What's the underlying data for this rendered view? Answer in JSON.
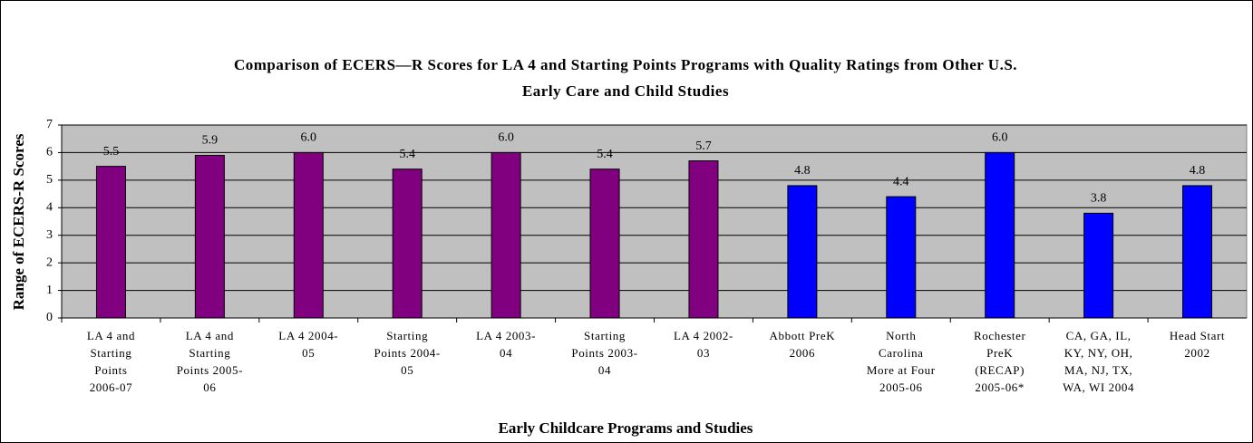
{
  "chart_data": {
    "type": "bar",
    "title": "Comparison of ECERS—R Scores for LA 4 and Starting Points Programs with Quality Ratings from Other U.S. Early Care and Child Studies",
    "x_label": "Early Childcare Programs and Studies",
    "y_label": "Range of ECERS-R Scores",
    "categories": [
      "LA 4 and\nStarting\nPoints\n2006-07",
      "LA 4 and\nStarting\nPoints 2005-\n06",
      "LA 4   2004-\n05",
      "Starting\nPoints 2004-\n05",
      "LA 4   2003-\n04",
      "Starting\nPoints 2003-\n04",
      "LA 4   2002-\n03",
      "Abbott PreK\n2006",
      "North\nCarolina\nMore at Four\n2005-06",
      "Rochester\nPreK\n(RECAP)\n2005-06*",
      "CA, GA, IL,\nKY, NY, OH,\nMA, NJ, TX,\nWA, WI 2004",
      "Head Start\n2002"
    ],
    "values": [
      5.5,
      5.9,
      6.0,
      5.4,
      6.0,
      5.4,
      5.7,
      4.8,
      4.4,
      6.0,
      3.8,
      4.8
    ],
    "value_labels": [
      "5.5",
      "5.9",
      "6.0",
      "5.4",
      "6.0",
      "5.4",
      "5.7",
      "4.8",
      "4.4",
      "6.0",
      "3.8",
      "4.8"
    ],
    "colors": [
      "#800080",
      "#800080",
      "#800080",
      "#800080",
      "#800080",
      "#800080",
      "#800080",
      "#0000ff",
      "#0000ff",
      "#0000ff",
      "#0000ff",
      "#0000ff"
    ],
    "ylim": [
      0,
      7
    ],
    "yticks": [
      0,
      1,
      2,
      3,
      4,
      5,
      6,
      7
    ],
    "grid": true
  }
}
